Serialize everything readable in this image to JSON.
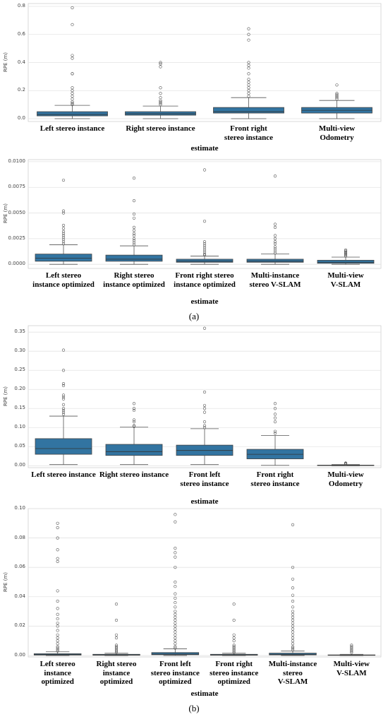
{
  "panel_labels": [
    "(a)",
    "(b)"
  ],
  "chart_data": [
    {
      "type": "box",
      "x_label": "estimate",
      "y_label": "RPE (m)",
      "color": "#3274a1",
      "grid": true,
      "ylim": [
        -0.02,
        0.82
      ],
      "yticks": [
        {
          "value": 0,
          "label": "0.0"
        },
        0.2,
        0.4,
        0.6,
        0.8
      ],
      "categories": [
        "Left stereo instance",
        "Right stereo instance",
        "Front right\nstereo instance",
        "Multi-view\nOdometry"
      ],
      "boxes": [
        {
          "whisker_low": 0.0,
          "q1": 0.02,
          "median": 0.03,
          "q3": 0.05,
          "whisker_high": 0.095,
          "outliers": [
            0.1,
            0.11,
            0.12,
            0.14,
            0.16,
            0.18,
            0.2,
            0.22,
            0.32,
            0.32,
            0.43,
            0.45,
            0.67,
            0.79
          ]
        },
        {
          "whisker_low": 0.0,
          "q1": 0.025,
          "median": 0.035,
          "q3": 0.05,
          "whisker_high": 0.09,
          "outliers": [
            0.1,
            0.11,
            0.12,
            0.13,
            0.15,
            0.18,
            0.22,
            0.37,
            0.39,
            0.4
          ]
        },
        {
          "whisker_low": 0.0,
          "q1": 0.04,
          "median": 0.05,
          "q3": 0.08,
          "whisker_high": 0.15,
          "outliers": [
            0.16,
            0.18,
            0.2,
            0.22,
            0.24,
            0.26,
            0.28,
            0.32,
            0.36,
            0.38,
            0.4,
            0.56,
            0.6,
            0.64
          ]
        },
        {
          "whisker_low": 0.0,
          "q1": 0.04,
          "median": 0.06,
          "q3": 0.08,
          "whisker_high": 0.13,
          "outliers": [
            0.14,
            0.15,
            0.16,
            0.17,
            0.18,
            0.24
          ]
        }
      ]
    },
    {
      "type": "box",
      "x_label": "estimate",
      "y_label": "RPE (m)",
      "color": "#3274a1",
      "grid": true,
      "ylim": [
        -0.0004,
        0.0102
      ],
      "yticks": [
        {
          "value": 0,
          "label": "0.0000"
        },
        0.0025,
        {
          "value": 0.005,
          "label": "0.0050"
        },
        0.0075,
        {
          "value": 0.01,
          "label": "0.0100"
        }
      ],
      "categories": [
        "Left stereo\ninstance optimized",
        "Right stereo\ninstance optimized",
        "Front right stereo\ninstance optimized",
        "Multi-instance\nstereo V-SLAM",
        "Multi-view\nV-SLAM"
      ],
      "boxes": [
        {
          "whisker_low": 0.0,
          "q1": 0.0003,
          "median": 0.0006,
          "q3": 0.001,
          "whisker_high": 0.0019,
          "outliers": [
            0.002,
            0.0022,
            0.0024,
            0.0026,
            0.0028,
            0.003,
            0.0032,
            0.0035,
            0.0038,
            0.005,
            0.0052,
            0.0082
          ]
        },
        {
          "whisker_low": 0.0,
          "q1": 0.0003,
          "median": 0.0005,
          "q3": 0.0009,
          "whisker_high": 0.0018,
          "outliers": [
            0.0019,
            0.0021,
            0.0023,
            0.0025,
            0.0028,
            0.003,
            0.0033,
            0.0036,
            0.0045,
            0.0049,
            0.0062,
            0.0084
          ]
        },
        {
          "whisker_low": 0.0,
          "q1": 0.0002,
          "median": 0.0003,
          "q3": 0.0005,
          "whisker_high": 0.0008,
          "outliers": [
            0.0009,
            0.001,
            0.0012,
            0.0014,
            0.0016,
            0.0018,
            0.002,
            0.0022,
            0.0042,
            0.0092
          ]
        },
        {
          "whisker_low": 0.0,
          "q1": 0.0002,
          "median": 0.0003,
          "q3": 0.0005,
          "whisker_high": 0.001,
          "outliers": [
            0.0011,
            0.0013,
            0.0015,
            0.0017,
            0.002,
            0.0022,
            0.0025,
            0.0028,
            0.0036,
            0.0039,
            0.0086
          ]
        },
        {
          "whisker_low": 0.0,
          "q1": 0.0001,
          "median": 0.0002,
          "q3": 0.0004,
          "whisker_high": 0.0007,
          "outliers": [
            0.0008,
            0.0009,
            0.001,
            0.0011,
            0.0012,
            0.0013,
            0.0014
          ]
        }
      ]
    },
    {
      "type": "box",
      "x_label": "estimate",
      "y_label": "RPE (m)",
      "color": "#3274a1",
      "grid": true,
      "ylim": [
        -0.005,
        0.367
      ],
      "yticks": [
        {
          "value": 0,
          "label": "0.00"
        },
        0.05,
        {
          "value": 0.1,
          "label": "0.10"
        },
        0.15,
        {
          "value": 0.2,
          "label": "0.20"
        },
        0.25,
        {
          "value": 0.3,
          "label": "0.30"
        },
        0.35
      ],
      "categories": [
        "Left stereo instance",
        "Right stereo instance",
        "Front left\nstereo instance",
        "Front right\nstereo instance",
        "Multi-view\nOdometry"
      ],
      "boxes": [
        {
          "whisker_low": 0.003,
          "q1": 0.03,
          "median": 0.045,
          "q3": 0.071,
          "whisker_high": 0.13,
          "outliers": [
            0.135,
            0.14,
            0.145,
            0.15,
            0.16,
            0.175,
            0.18,
            0.185,
            0.21,
            0.215,
            0.25,
            0.303
          ]
        },
        {
          "whisker_low": 0.003,
          "q1": 0.027,
          "median": 0.037,
          "q3": 0.056,
          "whisker_high": 0.101,
          "outliers": [
            0.103,
            0.105,
            0.115,
            0.12,
            0.145,
            0.15,
            0.163
          ]
        },
        {
          "whisker_low": 0.003,
          "q1": 0.027,
          "median": 0.04,
          "q3": 0.054,
          "whisker_high": 0.097,
          "outliers": [
            0.1,
            0.105,
            0.115,
            0.14,
            0.15,
            0.158,
            0.193,
            0.36
          ]
        },
        {
          "whisker_low": 0.001,
          "q1": 0.018,
          "median": 0.03,
          "q3": 0.043,
          "whisker_high": 0.079,
          "outliers": [
            0.085,
            0.09,
            0.115,
            0.125,
            0.135,
            0.15,
            0.163
          ]
        },
        {
          "whisker_low": 0.0,
          "q1": 0.0005,
          "median": 0.001,
          "q3": 0.0015,
          "whisker_high": 0.003,
          "outliers": [
            0.004,
            0.005,
            0.006,
            0.007
          ]
        }
      ]
    },
    {
      "type": "box",
      "x_label": "estimate",
      "y_label": "RPE (m)",
      "color": "#3274a1",
      "grid": true,
      "ylim": [
        -0.001,
        0.1
      ],
      "yticks": [
        {
          "value": 0,
          "label": "0.00"
        },
        0.02,
        0.04,
        0.06,
        0.08,
        {
          "value": 0.1,
          "label": "0.10"
        }
      ],
      "categories": [
        "Left stereo\ninstance\noptimized",
        "Right stereo\ninstance\noptimized",
        "Front left\nstereo instance\noptimized",
        "Front right\nstereo instance\noptimized",
        "Multi-instance\nstereo\nV-SLAM",
        "Multi-view\nV-SLAM"
      ],
      "boxes": [
        {
          "whisker_low": 0.0,
          "q1": 0.0003,
          "median": 0.0006,
          "q3": 0.0012,
          "whisker_high": 0.0025,
          "outliers": [
            0.003,
            0.004,
            0.005,
            0.006,
            0.008,
            0.01,
            0.012,
            0.014,
            0.017,
            0.02,
            0.022,
            0.025,
            0.028,
            0.032,
            0.037,
            0.044,
            0.064,
            0.066,
            0.072,
            0.08,
            0.087,
            0.09
          ]
        },
        {
          "whisker_low": 0.0,
          "q1": 0.0002,
          "median": 0.0004,
          "q3": 0.0008,
          "whisker_high": 0.0015,
          "outliers": [
            0.002,
            0.003,
            0.004,
            0.005,
            0.006,
            0.007,
            0.012,
            0.014,
            0.024,
            0.035
          ]
        },
        {
          "whisker_low": 0.0,
          "q1": 0.0005,
          "median": 0.001,
          "q3": 0.002,
          "whisker_high": 0.0045,
          "outliers": [
            0.005,
            0.006,
            0.008,
            0.01,
            0.012,
            0.014,
            0.016,
            0.018,
            0.02,
            0.022,
            0.024,
            0.026,
            0.028,
            0.03,
            0.033,
            0.036,
            0.039,
            0.042,
            0.047,
            0.05,
            0.06,
            0.067,
            0.07,
            0.073,
            0.091,
            0.096
          ]
        },
        {
          "whisker_low": 0.0,
          "q1": 0.0002,
          "median": 0.0004,
          "q3": 0.0008,
          "whisker_high": 0.0015,
          "outliers": [
            0.002,
            0.003,
            0.004,
            0.005,
            0.006,
            0.007,
            0.01,
            0.012,
            0.014,
            0.024,
            0.035
          ]
        },
        {
          "whisker_low": 0.0,
          "q1": 0.0004,
          "median": 0.0008,
          "q3": 0.0016,
          "whisker_high": 0.003,
          "outliers": [
            0.004,
            0.005,
            0.006,
            0.008,
            0.01,
            0.012,
            0.014,
            0.016,
            0.018,
            0.02,
            0.022,
            0.024,
            0.026,
            0.028,
            0.03,
            0.033,
            0.037,
            0.041,
            0.046,
            0.052,
            0.06,
            0.089
          ]
        },
        {
          "whisker_low": 0.0,
          "q1": 0.0001,
          "median": 0.0002,
          "q3": 0.0004,
          "whisker_high": 0.0008,
          "outliers": [
            0.002,
            0.003,
            0.004,
            0.005,
            0.006,
            0.007
          ]
        }
      ]
    }
  ]
}
